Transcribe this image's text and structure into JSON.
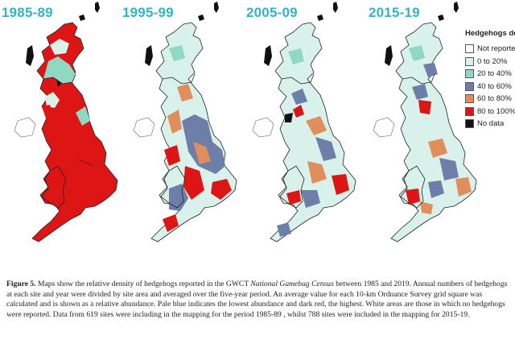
{
  "panels": [
    {
      "title": "1985-89",
      "dominant": "80 to 100%"
    },
    {
      "title": "1995-99",
      "dominant": "mixed"
    },
    {
      "title": "2005-09",
      "dominant": "mixed"
    },
    {
      "title": "2015-19",
      "dominant": "mixed"
    }
  ],
  "legend": {
    "title": "Hedgehogs density",
    "items": [
      {
        "label": "Not reported",
        "color": "#ffffff"
      },
      {
        "label": "0 to 20%",
        "color": "#d8f1ea"
      },
      {
        "label": "20 to 40%",
        "color": "#8fd9c2"
      },
      {
        "label": "40 to 60%",
        "color": "#6d7fa8"
      },
      {
        "label": "60 to 80%",
        "color": "#e08e5c"
      },
      {
        "label": "80 to 100%",
        "color": "#de1515"
      },
      {
        "label": "No data",
        "color": "#111111"
      }
    ]
  },
  "caption": {
    "label": "Figure 5.",
    "part1": " Maps show the relative density of hedgehogs reported in the GWCT ",
    "italic": "National Gamebag Census",
    "part2": " between 1985 and 2019. Annual numbers of hedgehogs at each site and year were divided by site area and averaged over the five-year period. An average value for each 10-km Ordnance Survey grid square was calculated and is shown as a relative abundance. Pale blue indicates the lowest abundance and dark red, the highest. White areas are those in which no hedgehogs were reported. Data from 619 sites were including in the mapping for the period 1985-89 , whilst 788 sites were included in the mapping for 2015-19."
  }
}
